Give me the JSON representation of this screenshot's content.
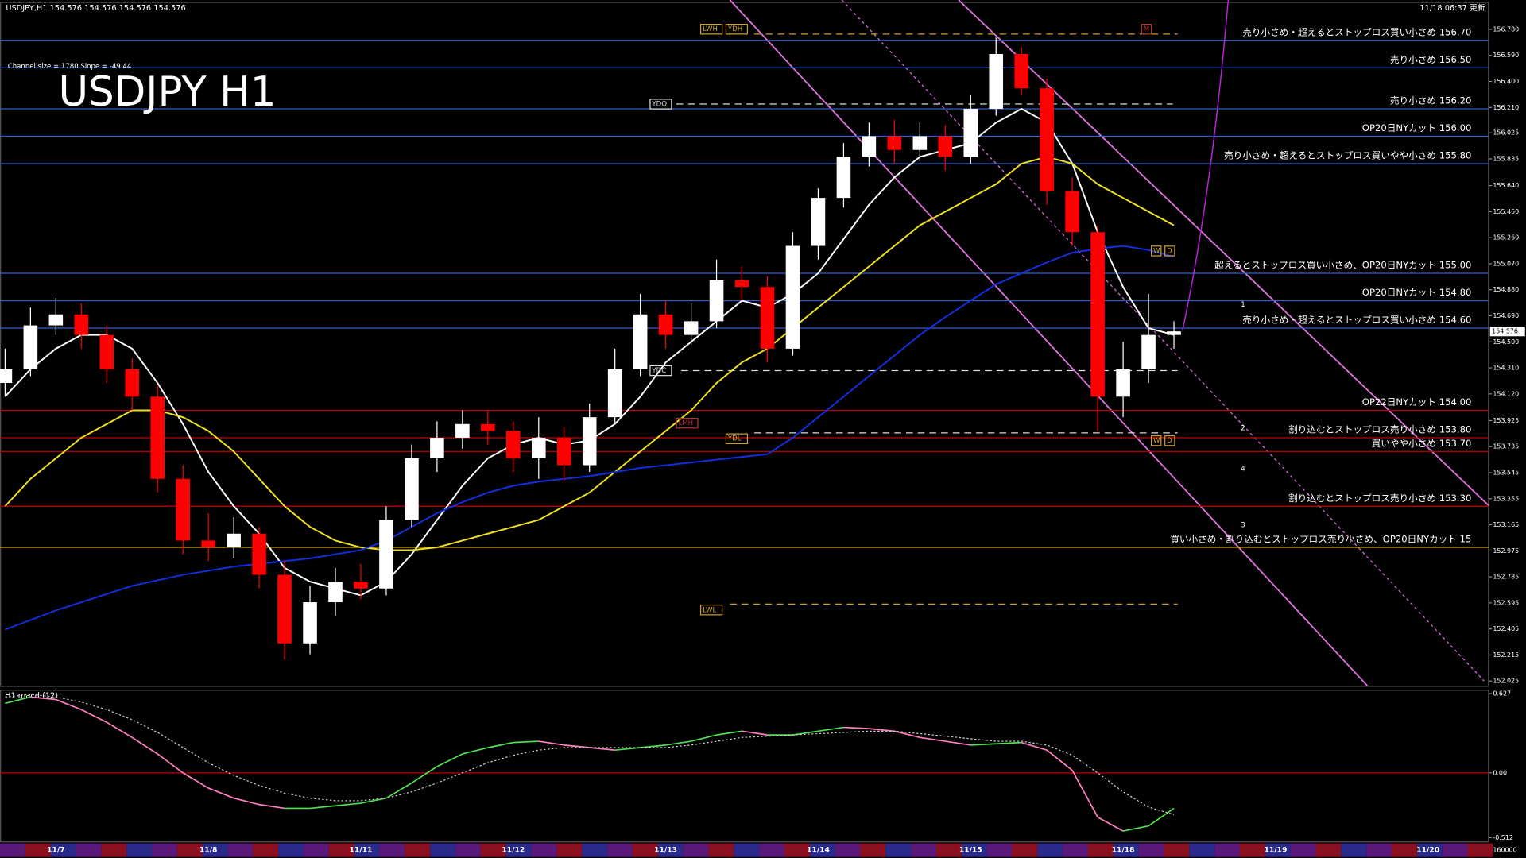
{
  "chart_data": [
    {
      "type": "candlestick",
      "title": "USDJPY H1",
      "info": "USDJPY,H1  154.576 154.576 154.576 154.576",
      "updated": "11/18 06:37 更新",
      "channel_info": "Channel size = 1780 Slope = -49.44",
      "xlim": [
        -0.2,
        58.4
      ],
      "xticks": [
        {
          "value": 2,
          "label": "11/7"
        },
        {
          "value": 8,
          "label": "11/8"
        },
        {
          "value": 14,
          "label": "11/11"
        },
        {
          "value": 20,
          "label": "11/12"
        },
        {
          "value": 26,
          "label": "11/13"
        },
        {
          "value": 32,
          "label": "11/14"
        },
        {
          "value": 38,
          "label": "11/15"
        },
        {
          "value": 44,
          "label": "11/18"
        },
        {
          "value": 50,
          "label": "11/19"
        },
        {
          "value": 56,
          "label": "11/20"
        }
      ],
      "ylim": [
        151.99,
        156.98
      ],
      "yticks": [
        {
          "value": 156.78,
          "label": "156.780"
        },
        {
          "value": 156.59,
          "label": "156.590"
        },
        {
          "value": 156.4,
          "label": "156.400"
        },
        {
          "value": 156.21,
          "label": "156.210"
        },
        156.025,
        155.835,
        {
          "value": 155.64,
          "label": "155.640"
        },
        {
          "value": 155.45,
          "label": "155.450"
        },
        {
          "value": 155.26,
          "label": "155.260"
        },
        {
          "value": 155.07,
          "label": "155.070"
        },
        {
          "value": 154.88,
          "label": "154.880"
        },
        {
          "value": 154.69,
          "label": "154.690"
        },
        {
          "value": 154.5,
          "label": "154.500"
        },
        {
          "value": 154.31,
          "label": "154.310"
        },
        {
          "value": 154.12,
          "label": "154.120"
        },
        153.925,
        153.735,
        153.545,
        153.355,
        153.165,
        152.975,
        152.785,
        152.595,
        152.405,
        152.215,
        152.025
      ],
      "last_price": 154.576,
      "up_color": "#ffffff",
      "down_color": "#ff0000",
      "ohlc": {
        "open": [
          154.2,
          154.3,
          154.62,
          154.7,
          154.55,
          154.3,
          154.1,
          153.5,
          153.05,
          153.0,
          153.1,
          152.8,
          152.3,
          152.6,
          152.75,
          152.7,
          153.2,
          153.65,
          153.8,
          153.9,
          153.85,
          153.65,
          153.8,
          153.6,
          153.95,
          154.3,
          154.7,
          154.55,
          154.65,
          154.95,
          154.9,
          154.45,
          155.2,
          155.55,
          155.85,
          156.0,
          155.9,
          156.0,
          155.85,
          156.2,
          156.6,
          156.35,
          155.6,
          155.3,
          154.1,
          154.3,
          154.55
        ],
        "high": [
          154.45,
          154.75,
          154.82,
          154.78,
          154.62,
          154.38,
          154.18,
          153.6,
          153.25,
          153.22,
          153.15,
          152.9,
          152.72,
          152.85,
          152.88,
          153.3,
          153.75,
          153.92,
          154.0,
          154.0,
          153.92,
          153.95,
          153.88,
          154.05,
          154.45,
          154.85,
          154.8,
          154.78,
          155.1,
          155.05,
          154.98,
          155.3,
          155.62,
          155.95,
          156.1,
          156.12,
          156.1,
          156.08,
          156.3,
          156.72,
          156.65,
          156.42,
          155.7,
          155.35,
          154.5,
          154.85,
          154.65
        ],
        "low": [
          154.1,
          154.25,
          154.55,
          154.45,
          154.2,
          154.0,
          153.4,
          152.95,
          152.9,
          152.92,
          152.7,
          152.18,
          152.22,
          152.5,
          152.62,
          152.65,
          153.15,
          153.55,
          153.72,
          153.75,
          153.55,
          153.5,
          153.48,
          153.55,
          153.9,
          154.25,
          154.45,
          154.48,
          154.6,
          154.8,
          154.35,
          154.4,
          155.1,
          155.48,
          155.78,
          155.8,
          155.82,
          155.75,
          155.8,
          156.15,
          156.3,
          155.5,
          155.2,
          153.85,
          153.95,
          154.2,
          154.45
        ],
        "close": [
          154.3,
          154.62,
          154.7,
          154.55,
          154.3,
          154.1,
          153.5,
          153.05,
          153.0,
          153.1,
          152.8,
          152.3,
          152.6,
          152.75,
          152.7,
          153.2,
          153.65,
          153.8,
          153.9,
          153.85,
          153.65,
          153.8,
          153.6,
          153.95,
          154.3,
          154.7,
          154.55,
          154.65,
          154.95,
          154.9,
          154.45,
          155.2,
          155.55,
          155.85,
          156.0,
          155.9,
          156.0,
          155.85,
          156.2,
          156.6,
          156.35,
          155.6,
          155.3,
          154.1,
          154.3,
          154.55,
          154.576
        ]
      },
      "lines": [
        {
          "color": "#ffffff",
          "values": [
            154.1,
            154.3,
            154.45,
            154.55,
            154.55,
            154.45,
            154.2,
            153.9,
            153.55,
            153.3,
            153.1,
            152.85,
            152.75,
            152.7,
            152.65,
            152.75,
            152.95,
            153.2,
            153.45,
            153.65,
            153.75,
            153.8,
            153.75,
            153.78,
            153.9,
            154.1,
            154.35,
            154.5,
            154.65,
            154.8,
            154.75,
            154.85,
            155.0,
            155.25,
            155.5,
            155.7,
            155.85,
            155.9,
            155.95,
            156.1,
            156.2,
            156.1,
            155.8,
            155.3,
            154.9,
            154.6,
            154.55
          ]
        },
        {
          "color": "#f0e020",
          "values": [
            153.3,
            153.5,
            153.65,
            153.8,
            153.9,
            154.0,
            154.0,
            153.95,
            153.85,
            153.7,
            153.5,
            153.3,
            153.15,
            153.05,
            153.0,
            152.98,
            152.98,
            153.0,
            153.05,
            153.1,
            153.15,
            153.2,
            153.3,
            153.4,
            153.55,
            153.7,
            153.85,
            154.0,
            154.2,
            154.35,
            154.45,
            154.6,
            154.75,
            154.9,
            155.05,
            155.2,
            155.35,
            155.45,
            155.55,
            155.65,
            155.8,
            155.85,
            155.8,
            155.65,
            155.55,
            155.45,
            155.35
          ]
        },
        {
          "color": "#1030e0",
          "values": [
            152.4,
            152.47,
            152.54,
            152.6,
            152.66,
            152.72,
            152.76,
            152.8,
            152.83,
            152.86,
            152.88,
            152.9,
            152.92,
            152.95,
            152.98,
            153.05,
            153.15,
            153.25,
            153.33,
            153.4,
            153.45,
            153.48,
            153.5,
            153.52,
            153.55,
            153.58,
            153.6,
            153.62,
            153.64,
            153.66,
            153.68,
            153.8,
            153.95,
            154.1,
            154.25,
            154.4,
            154.55,
            154.68,
            154.8,
            154.92,
            155.0,
            155.08,
            155.15,
            155.18,
            155.2,
            155.17,
            155.12
          ]
        }
      ],
      "levels": [
        {
          "value": 156.7,
          "label": "売り小さめ・超えるとストップロス買い小さめ 156.70",
          "color": "#2f5fd0"
        },
        {
          "value": 156.5,
          "label": "売り小さめ 156.50",
          "color": "#2f5fd0"
        },
        {
          "value": 156.2,
          "label": "売り小さめ 156.20",
          "color": "#2f5fd0"
        },
        {
          "value": 156.0,
          "label": "OP20日NYカット 156.00",
          "color": "#2f5fd0"
        },
        {
          "value": 155.8,
          "label": "売り小さめ・超えるとストップロス買いやや小さめ 155.80",
          "color": "#2f5fd0"
        },
        {
          "value": 155.0,
          "label": "超えるとストップロス買い小さめ、OP20日NYカット 155.00",
          "color": "#2f5fd0"
        },
        {
          "value": 154.8,
          "label": "OP20日NYカット 154.80",
          "color": "#2f5fd0"
        },
        {
          "value": 154.6,
          "label": "売り小さめ・超えるとストップロス買い小さめ 154.60",
          "color": "#2f5fd0"
        },
        {
          "value": 154.0,
          "label": "OP22日NYカット 154.00",
          "color": "#c00000"
        },
        {
          "value": 153.8,
          "label": "割り込むとストップロス売り小さめ 153.80",
          "color": "#c00000"
        },
        {
          "value": 153.7,
          "label": "買いやや小さめ 153.70",
          "color": "#c00000"
        },
        {
          "value": 153.3,
          "label": "割り込むとストップロス売り小さめ 153.30",
          "color": "#c00000"
        },
        {
          "value": 153.0,
          "label": "買い小さめ・割り込むとストップロス売り小さめ、OP20日NYカット 15",
          "color": "#c8a000"
        }
      ],
      "annotations": [
        "LWH",
        "YDH",
        "YDO",
        "YDC",
        "LMH",
        "YDL",
        "LWL",
        "M",
        "W",
        "D",
        "W",
        "D",
        "1",
        "2",
        "3",
        "4"
      ],
      "corner_label": "160000"
    },
    {
      "type": "line",
      "title": "H1  macd (12)",
      "xlim": [
        -0.2,
        58.4
      ],
      "ylim": [
        -0.55,
        0.65
      ],
      "yticks": [
        0.627,
        {
          "value": 0,
          "label": "0.00"
        },
        -0.512
      ],
      "zero_color": "#c00000",
      "series": [
        {
          "rising_color": "#50e050",
          "falling_color": "#ff80c0",
          "values": [
            0.55,
            0.6,
            0.58,
            0.5,
            0.4,
            0.28,
            0.15,
            0.0,
            -0.12,
            -0.2,
            -0.25,
            -0.28,
            -0.28,
            -0.26,
            -0.24,
            -0.2,
            -0.08,
            0.05,
            0.15,
            0.2,
            0.24,
            0.25,
            0.22,
            0.2,
            0.18,
            0.2,
            0.22,
            0.25,
            0.3,
            0.33,
            0.3,
            0.3,
            0.33,
            0.36,
            0.35,
            0.33,
            0.28,
            0.25,
            0.22,
            0.23,
            0.24,
            0.18,
            0.02,
            -0.35,
            -0.46,
            -0.42,
            -0.28
          ]
        },
        {
          "color": "#cccccc",
          "dashed": true,
          "values": [
            0.6,
            0.62,
            0.6,
            0.56,
            0.5,
            0.42,
            0.32,
            0.2,
            0.08,
            -0.02,
            -0.1,
            -0.16,
            -0.2,
            -0.22,
            -0.22,
            -0.2,
            -0.15,
            -0.08,
            0.0,
            0.08,
            0.14,
            0.18,
            0.2,
            0.2,
            0.2,
            0.2,
            0.2,
            0.22,
            0.25,
            0.28,
            0.29,
            0.3,
            0.31,
            0.32,
            0.33,
            0.33,
            0.31,
            0.29,
            0.27,
            0.25,
            0.25,
            0.22,
            0.14,
            0.0,
            -0.15,
            -0.27,
            -0.33
          ]
        }
      ]
    }
  ]
}
